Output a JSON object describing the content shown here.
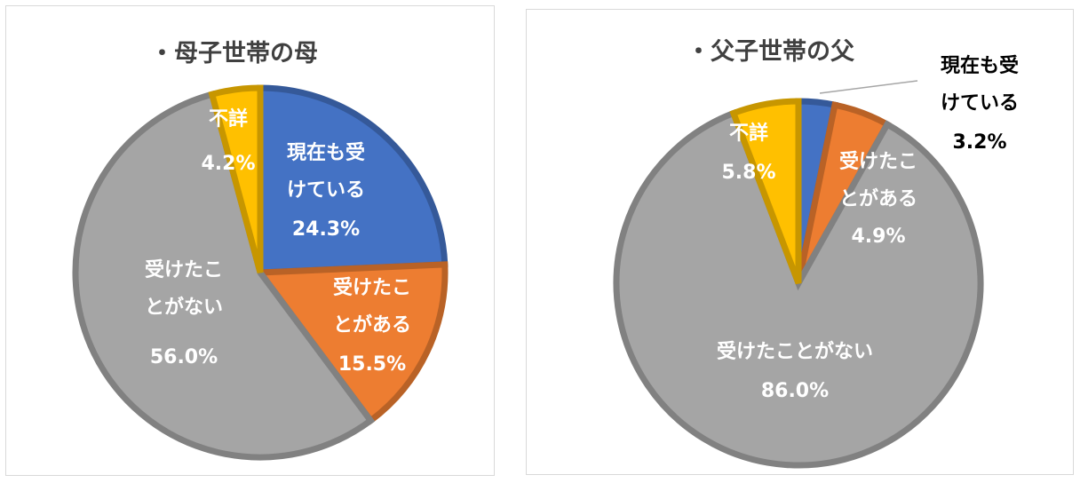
{
  "colors": {
    "現在も受けている": "#4472c4",
    "受けたことがある": "#ed7d31",
    "受けたことがない": "#a5a5a5",
    "不詳": "#ffc000"
  },
  "chart_data": [
    {
      "type": "pie",
      "title": "・母子世帯の母",
      "categories": [
        "現在も受けている",
        "受けたことがある",
        "受けたことがない",
        "不詳"
      ],
      "values": [
        24.3,
        15.5,
        56.0,
        4.2
      ],
      "value_labels": [
        "24.3%",
        "15.5%",
        "56.0%",
        "4.2%"
      ],
      "label_lines": [
        [
          "現在も受",
          "けている"
        ],
        [
          "受けたこ",
          "とがある"
        ],
        [
          "受けたこ",
          "とがない"
        ],
        [
          "不詳"
        ]
      ],
      "start_angle": "top",
      "direction": "clockwise"
    },
    {
      "type": "pie",
      "title": "・父子世帯の父",
      "categories": [
        "現在も受けている",
        "受けたことがある",
        "受けたことがない",
        "不詳"
      ],
      "values": [
        3.2,
        4.9,
        86.0,
        5.8
      ],
      "value_labels": [
        "3.2%",
        "4.9%",
        "86.0%",
        "5.8%"
      ],
      "label_lines": [
        [
          "現在も受",
          "けている"
        ],
        [
          "受けたこ",
          "とがある"
        ],
        [
          "受けたことがない"
        ],
        [
          "不詳"
        ]
      ],
      "start_angle": "top",
      "direction": "clockwise"
    }
  ]
}
